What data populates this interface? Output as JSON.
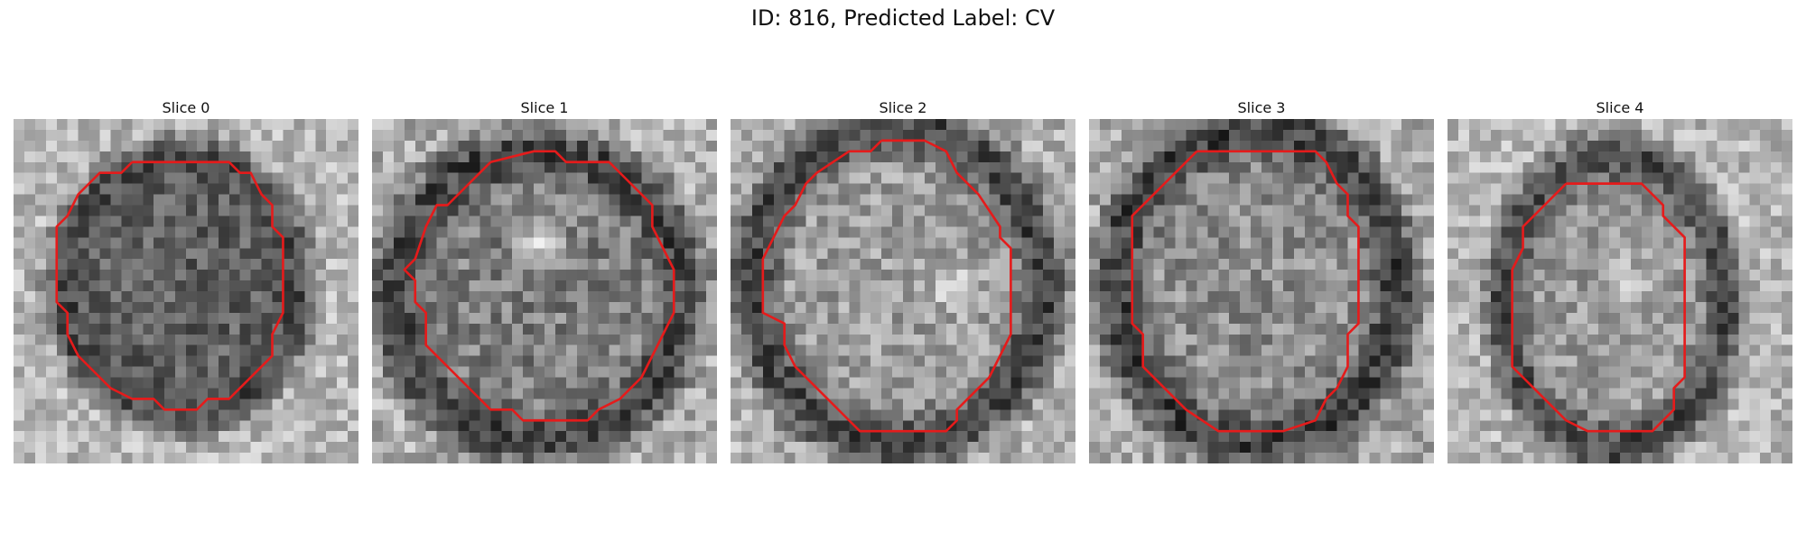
{
  "figure": {
    "title": "ID: 816, Predicted Label: CV"
  },
  "panels": [
    {
      "title": "Slice 0"
    },
    {
      "title": "Slice 1"
    },
    {
      "title": "Slice 2"
    },
    {
      "title": "Slice 3"
    },
    {
      "title": "Slice 4"
    }
  ],
  "colors": {
    "contour": "#e51b1b",
    "background": "#ffffff"
  }
}
